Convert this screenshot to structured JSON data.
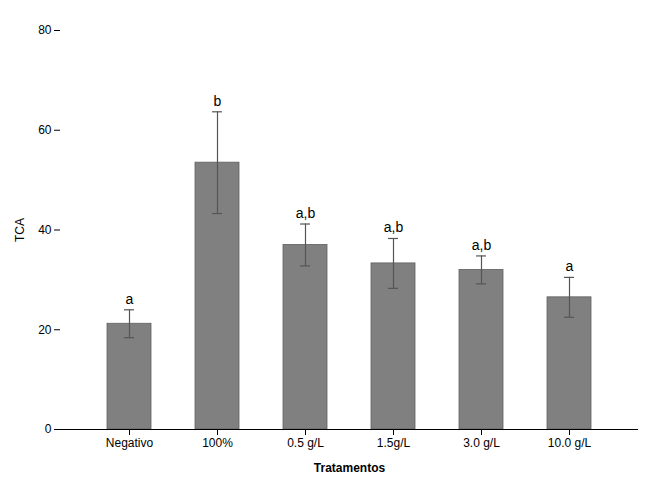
{
  "chart_data": {
    "type": "bar",
    "categories": [
      "Negativo",
      "100%",
      "0.5 g/L",
      "1.5g/L",
      "3.0 g/L",
      "10.0 g/L"
    ],
    "values": [
      21.2,
      53.5,
      37.0,
      33.3,
      32.0,
      26.5
    ],
    "errors": [
      2.8,
      10.2,
      4.2,
      5.0,
      2.8,
      4.0
    ],
    "annotations": [
      "a",
      "b",
      "a,b",
      "a,b",
      "a,b",
      "a"
    ],
    "color": "#808080",
    "xlabel": "Tratamentos",
    "ylabel": "TCA",
    "ylim": [
      0,
      80
    ],
    "yticks": [
      0,
      20,
      40,
      60,
      80
    ],
    "grid": false
  }
}
